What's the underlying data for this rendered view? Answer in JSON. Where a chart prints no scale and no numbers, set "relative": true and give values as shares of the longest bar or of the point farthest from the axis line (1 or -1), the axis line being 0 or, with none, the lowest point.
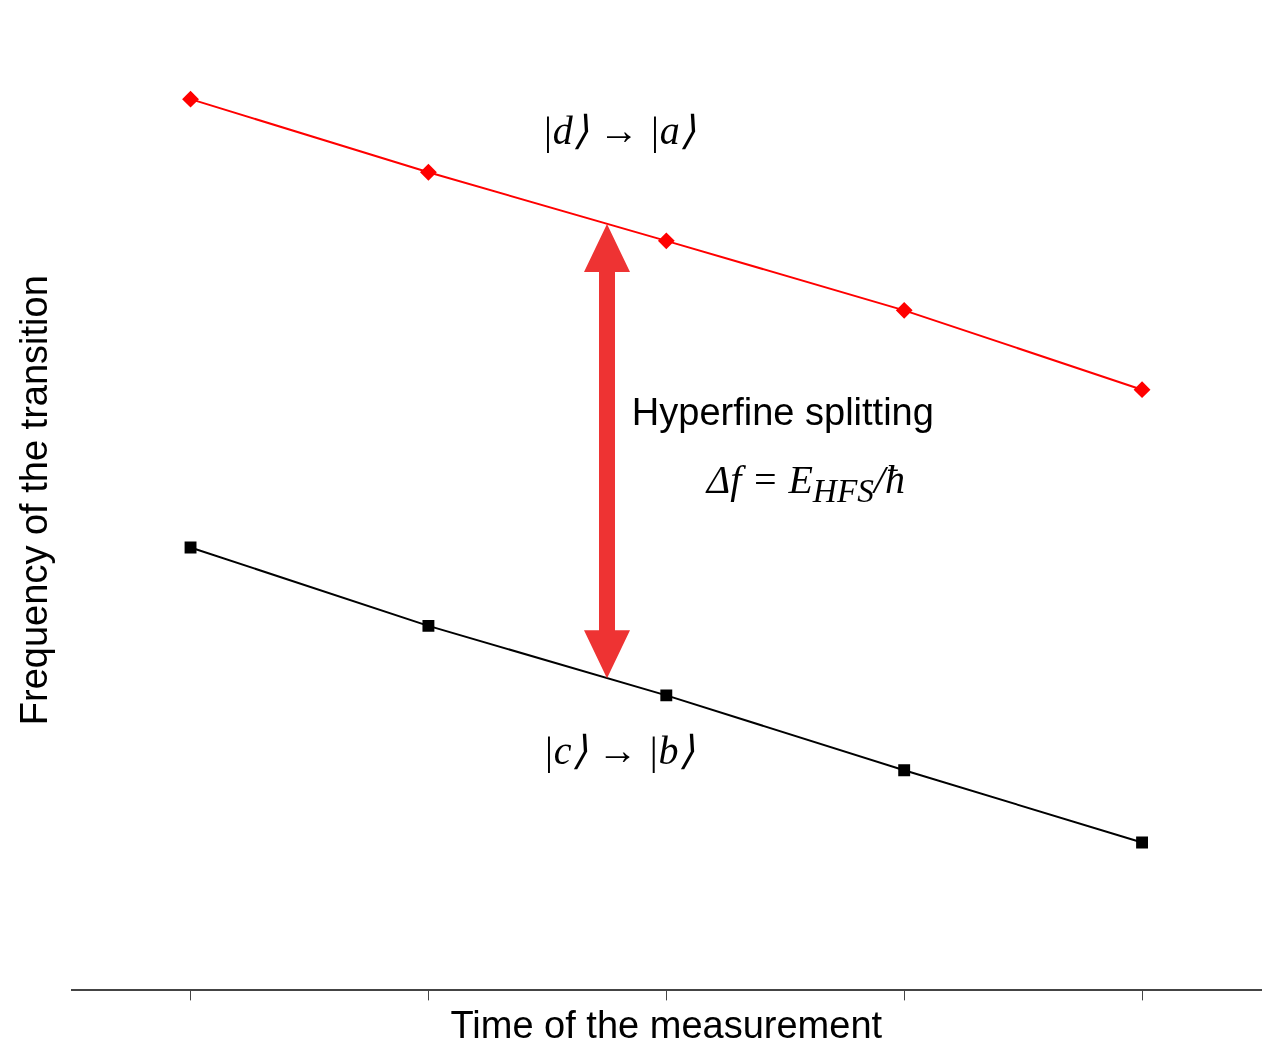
{
  "chart_data": {
    "type": "line",
    "xlabel": "Time of the measurement",
    "ylabel": "Frequency of the transition",
    "categories": [
      null,
      null,
      null,
      null,
      null
    ],
    "relative": true,
    "tick_labels": false,
    "series": [
      {
        "name": "|d⟩ → |a⟩",
        "color": "#ff0000",
        "marker": "diamond",
        "values": [
          1,
          0.918,
          0.841,
          0.763,
          0.674
        ]
      },
      {
        "name": "|c⟩ → |b⟩",
        "color": "#000000",
        "marker": "square",
        "values": [
          0.497,
          0.409,
          0.331,
          0.247,
          0.166
        ]
      }
    ],
    "annotations": [
      "Hyperfine splitting",
      "Δf = E$_{HFS}$/ħ"
    ]
  }
}
